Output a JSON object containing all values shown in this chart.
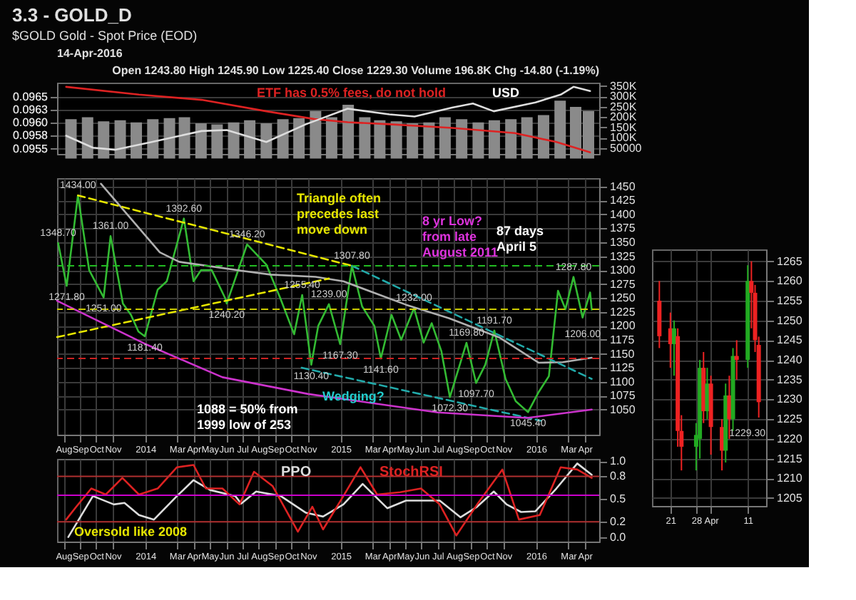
{
  "chart_data": [
    {
      "type": "line",
      "title": "3.3 - GOLD_D",
      "subtitle": "$GOLD Gold - Spot Price (EOD)",
      "annotations": [
        "14-Apr-2016",
        "Open 1243.80  High 1245.90  Low 1225.40  Close 1229.30  Volume 196.8K  Chg -14.80 (-1.19%)",
        "ETF has 0.5% fees, do not hold",
        "USD"
      ],
      "xlim": [
        "2013-07-20",
        "2016-04-28"
      ],
      "ylim": [
        0.0954,
        0.09677
      ],
      "yticks": [
        0.0955,
        {
          "value": 0.09575,
          "label": "0.0958"
        },
        {
          "value": 0.096,
          "label": "0.0960"
        },
        {
          "value": 0.09625,
          "label": "0.0963"
        },
        0.0965
      ],
      "y2lim": [
        22000,
        367000
      ],
      "y2ticks": [
        50000,
        {
          "value": 100000,
          "label": "100K"
        },
        {
          "value": 150000,
          "label": "150K"
        },
        {
          "value": 200000,
          "label": "200K"
        },
        {
          "value": 250000,
          "label": "250K"
        },
        {
          "value": 300000,
          "label": "300K"
        },
        {
          "value": 350000,
          "label": "350K"
        }
      ],
      "tick_labels": "y",
      "grid": "y",
      "series": [
        {
          "type": "bar",
          "axis": "y2",
          "color": "#8a8a8a",
          "x": [
            "2013-08-15",
            "2013-09-15",
            "2013-10-15",
            "2013-11-15",
            "2013-12-15",
            "2014-01-15",
            "2014-02-15",
            "2014-03-15",
            "2014-04-15",
            "2014-05-15",
            "2014-06-15",
            "2014-07-15",
            "2014-08-15",
            "2014-09-15",
            "2014-10-15",
            "2014-11-15",
            "2014-12-15",
            "2015-01-15",
            "2015-02-15",
            "2015-03-15",
            "2015-04-15",
            "2015-05-15",
            "2015-06-15",
            "2015-07-15",
            "2015-08-15",
            "2015-09-15",
            "2015-10-15",
            "2015-11-15",
            "2015-12-15",
            "2016-01-15",
            "2016-02-15",
            "2016-03-15",
            "2016-04-08"
          ],
          "values": [
            190000,
            200000,
            180000,
            185000,
            175000,
            190000,
            195000,
            200000,
            170000,
            165000,
            175000,
            185000,
            170000,
            190000,
            195000,
            230000,
            200000,
            260000,
            200000,
            185000,
            180000,
            170000,
            175000,
            200000,
            190000,
            175000,
            185000,
            190000,
            200000,
            210000,
            280000,
            250000,
            230000
          ]
        },
        {
          "color": "#dd2222",
          "x": [
            "2013-08-06",
            "2013-12-20",
            "2014-04-16",
            "2014-08-15",
            "2014-11-13",
            "2015-01-14",
            "2015-04-02",
            "2015-07-28",
            "2015-11-22",
            "2016-02-08",
            "2016-04-11"
          ],
          "values": [
            0.09669,
            0.09654,
            0.09644,
            0.09622,
            0.09607,
            0.09601,
            0.09597,
            0.0959,
            0.0958,
            0.09563,
            0.09543
          ]
        },
        {
          "color": "#dddddd",
          "x": [
            "2013-08-06",
            "2013-09-25",
            "2013-11-05",
            "2014-01-13",
            "2014-04-16",
            "2014-06-02",
            "2014-08-15",
            "2014-10-28",
            "2015-01-14",
            "2015-04-02",
            "2015-05-19",
            "2015-07-28",
            "2015-09-05",
            "2015-10-14",
            "2015-12-31",
            "2016-02-16",
            "2016-03-11",
            "2016-04-11"
          ],
          "values": [
            0.09575,
            0.09552,
            0.09548,
            0.09563,
            0.09584,
            0.09586,
            0.09563,
            0.09597,
            0.09627,
            0.09616,
            0.09612,
            0.09629,
            0.09637,
            0.09622,
            0.09639,
            0.09654,
            0.09669,
            0.09661
          ]
        }
      ]
    },
    {
      "type": "line",
      "xlim": [
        "2013-07-20",
        "2016-04-28"
      ],
      "ylim": [
        1005,
        1465
      ],
      "yticks": [
        1050,
        1075,
        1100,
        1125,
        1150,
        1175,
        1200,
        1225,
        1250,
        1275,
        1300,
        1325,
        1350,
        1375,
        1400,
        1425,
        1450
      ],
      "xticks": [
        {
          "value": "2013-08-01",
          "label": "Aug"
        },
        {
          "value": "2013-09-01",
          "label": "Sep"
        },
        {
          "value": "2013-10-01",
          "label": "Oct"
        },
        {
          "value": "2013-11-01",
          "label": "Nov"
        },
        {
          "value": "2014-01-01",
          "label": "2014"
        },
        {
          "value": "2014-03-01",
          "label": "Mar"
        },
        {
          "value": "2014-04-01",
          "label": "Apr"
        },
        {
          "value": "2014-05-01",
          "label": "May"
        },
        {
          "value": "2014-06-01",
          "label": "Jun"
        },
        {
          "value": "2014-07-01",
          "label": "Jul"
        },
        {
          "value": "2014-08-01",
          "label": "Aug"
        },
        {
          "value": "2014-09-01",
          "label": "Sep"
        },
        {
          "value": "2014-10-01",
          "label": "Oct"
        },
        {
          "value": "2014-11-01",
          "label": "Nov"
        },
        {
          "value": "2015-01-01",
          "label": "2015"
        },
        {
          "value": "2015-03-01",
          "label": "Mar"
        },
        {
          "value": "2015-04-01",
          "label": "Apr"
        },
        {
          "value": "2015-05-01",
          "label": "May"
        },
        {
          "value": "2015-06-01",
          "label": "Jun"
        },
        {
          "value": "2015-07-01",
          "label": "Jul"
        },
        {
          "value": "2015-08-01",
          "label": "Aug"
        },
        {
          "value": "2015-09-01",
          "label": "Sep"
        },
        {
          "value": "2015-10-01",
          "label": "Oct"
        },
        {
          "value": "2015-11-01",
          "label": "Nov"
        },
        {
          "value": "2016-01-01",
          "label": "2016"
        },
        {
          "value": "2016-03-01",
          "label": "Mar"
        },
        {
          "value": "2016-04-01",
          "label": "Apr"
        }
      ],
      "grid": true,
      "ref_lines": [
        {
          "axis": "y",
          "value": 1307.8,
          "color": "#22bb22",
          "line_style": "dashed"
        },
        {
          "axis": "y",
          "value": 1230,
          "color": "#cccc00",
          "line_style": "dashed"
        },
        {
          "axis": "y",
          "value": 1141.6,
          "color": "#cc2222",
          "line_style": "dashed"
        }
      ],
      "series": [
        {
          "color": "#33bb33",
          "x": [
            "2013-07-22",
            "2013-08-07",
            "2013-08-28",
            "2013-09-18",
            "2013-10-15",
            "2013-10-28",
            "2013-11-20",
            "2013-12-05",
            "2013-12-19",
            "2013-12-31",
            "2014-01-24",
            "2014-02-10",
            "2014-03-14",
            "2014-04-01",
            "2014-04-15",
            "2014-05-05",
            "2014-05-30",
            "2014-06-02",
            "2014-07-10",
            "2014-08-15",
            "2014-09-10",
            "2014-10-06",
            "2014-10-21",
            "2014-11-07",
            "2014-11-20",
            "2014-12-10",
            "2014-12-31",
            "2015-01-22",
            "2015-02-10",
            "2015-03-05",
            "2015-03-17",
            "2015-04-06",
            "2015-04-24",
            "2015-05-18",
            "2015-06-05",
            "2015-06-20",
            "2015-07-08",
            "2015-07-24",
            "2015-08-24",
            "2015-09-11",
            "2015-09-28",
            "2015-10-15",
            "2015-11-05",
            "2015-11-24",
            "2015-12-17",
            "2016-01-05",
            "2016-01-25",
            "2016-02-11",
            "2016-02-25",
            "2016-03-11",
            "2016-03-28",
            "2016-04-11",
            "2016-04-14"
          ],
          "values": [
            1348.7,
            1271.8,
            1434.0,
            1300,
            1251.0,
            1361.0,
            1240,
            1220,
            1190,
            1181.4,
            1265,
            1280,
            1392.6,
            1280,
            1300,
            1300,
            1250,
            1240.2,
            1346.2,
            1310,
            1250,
            1185,
            1255.4,
            1130.4,
            1200,
            1239.0,
            1167.3,
            1307.8,
            1235,
            1200,
            1141.6,
            1220,
            1175,
            1232.0,
            1170,
            1205,
            1155,
            1072.3,
            1169.8,
            1097.7,
            1130,
            1191.7,
            1105,
            1065,
            1045.4,
            1080,
            1110,
            1263,
            1230,
            1287.8,
            1215,
            1260,
            1229.3
          ]
        },
        {
          "color": "#b0b0b0",
          "x": [
            "2013-10-10",
            "2014-01-28",
            "2014-03-05",
            "2014-04-25",
            "2014-06-30",
            "2014-08-23",
            "2014-11-15",
            "2015-01-06",
            "2015-05-03",
            "2015-07-22",
            "2015-10-25",
            "2016-01-06",
            "2016-02-20",
            "2016-04-14"
          ],
          "values": [
            1455,
            1332,
            1315,
            1308,
            1299,
            1292,
            1288,
            1280,
            1238,
            1214,
            1179,
            1134,
            1135,
            1143
          ]
        },
        {
          "color": "#e6e600",
          "line_style": "dashed",
          "x": [
            "2013-08-28",
            "2015-01-22"
          ],
          "values": [
            1434,
            1307.8
          ]
        },
        {
          "color": "#e6e600",
          "line_style": "dashed",
          "x": [
            "2013-07-20",
            "2014-12-10"
          ],
          "values": [
            1180,
            1285
          ]
        },
        {
          "color": "#22aaaa",
          "line_style": "dashed",
          "x": [
            "2015-01-22",
            "2016-04-14"
          ],
          "values": [
            1307.8,
            1105
          ]
        },
        {
          "color": "#22aaaa",
          "line_style": "dashed",
          "x": [
            "2014-10-20",
            "2016-01-10"
          ],
          "values": [
            1125,
            1030
          ]
        },
        {
          "color": "#cc33cc",
          "x": [
            "2013-07-20",
            "2013-12-31",
            "2014-05-25",
            "2014-11-01",
            "2015-07-01",
            "2015-12-15",
            "2016-04-14"
          ],
          "values": [
            1245,
            1168,
            1108,
            1078,
            1045,
            1035,
            1050
          ]
        }
      ],
      "annotations": [
        {
          "text": "1348.70",
          "x": "2013-07-22",
          "y": 1348.7
        },
        {
          "text": "1271.80",
          "x": "2013-08-07",
          "y": 1271.8
        },
        {
          "text": "1434.00",
          "x": "2013-08-28",
          "y": 1434.0
        },
        {
          "text": "1251.00",
          "x": "2013-10-15",
          "y": 1251.0
        },
        {
          "text": "1361.00",
          "x": "2013-10-28",
          "y": 1361.0
        },
        {
          "text": "1181.40",
          "x": "2013-12-31",
          "y": 1181.4
        },
        {
          "text": "1392.60",
          "x": "2014-03-14",
          "y": 1392.6
        },
        {
          "text": "1240.20",
          "x": "2014-06-02",
          "y": 1240.2
        },
        {
          "text": "1346.20",
          "x": "2014-07-10",
          "y": 1346.2
        },
        {
          "text": "1255.40",
          "x": "2014-10-21",
          "y": 1255.4
        },
        {
          "text": "1130.40",
          "x": "2014-11-07",
          "y": 1130.4
        },
        {
          "text": "1239.00",
          "x": "2014-12-10",
          "y": 1239.0
        },
        {
          "text": "1167.30",
          "x": "2014-12-31",
          "y": 1167.3
        },
        {
          "text": "1307.80",
          "x": "2015-01-22",
          "y": 1307.8
        },
        {
          "text": "1141.60",
          "x": "2015-03-17",
          "y": 1141.6
        },
        {
          "text": "1232.00",
          "x": "2015-05-18",
          "y": 1232.0
        },
        {
          "text": "1072.30",
          "x": "2015-07-24",
          "y": 1072.3
        },
        {
          "text": "1169.80",
          "x": "2015-08-24",
          "y": 1169.8
        },
        {
          "text": "1097.70",
          "x": "2015-09-11",
          "y": 1097.7
        },
        {
          "text": "1191.70",
          "x": "2015-10-15",
          "y": 1191.7
        },
        {
          "text": "1045.40",
          "x": "2015-12-17",
          "y": 1045.4
        },
        {
          "text": "1287.80",
          "x": "2016-03-11",
          "y": 1287.8
        },
        {
          "text": "1206.00",
          "x": "2016-03-28",
          "y": 1206
        },
        "Triangle often\nprecedes last\nmove down",
        "8 yr Low?\nfrom late\nAugust 2011",
        "87 days\nApril 5",
        "1088 = 50% from\n1999  low of 253",
        "Wedging?"
      ]
    },
    {
      "type": "line",
      "xlim": [
        "2013-07-20",
        "2016-04-28"
      ],
      "ylim": [
        -0.06,
        1.03
      ],
      "yticks": [
        {
          "value": 0,
          "label": "0.0"
        },
        0.2,
        0.5,
        0.8,
        {
          "value": 1,
          "label": "1.0"
        }
      ],
      "xticks": [
        {
          "value": "2013-08-01",
          "label": "Aug"
        },
        {
          "value": "2013-09-01",
          "label": "Sep"
        },
        {
          "value": "2013-10-01",
          "label": "Oct"
        },
        {
          "value": "2013-11-01",
          "label": "Nov"
        },
        {
          "value": "2014-01-01",
          "label": "2014"
        },
        {
          "value": "2014-03-01",
          "label": "Mar"
        },
        {
          "value": "2014-04-01",
          "label": "Apr"
        },
        {
          "value": "2014-05-01",
          "label": "May"
        },
        {
          "value": "2014-06-01",
          "label": "Jun"
        },
        {
          "value": "2014-07-01",
          "label": "Jul"
        },
        {
          "value": "2014-08-01",
          "label": "Aug"
        },
        {
          "value": "2014-09-01",
          "label": "Sep"
        },
        {
          "value": "2014-10-01",
          "label": "Oct"
        },
        {
          "value": "2014-11-01",
          "label": "Nov"
        },
        {
          "value": "2015-01-01",
          "label": "2015"
        },
        {
          "value": "2015-03-01",
          "label": "Mar"
        },
        {
          "value": "2015-04-01",
          "label": "Apr"
        },
        {
          "value": "2015-05-01",
          "label": "May"
        },
        {
          "value": "2015-06-01",
          "label": "Jun"
        },
        {
          "value": "2015-07-01",
          "label": "Jul"
        },
        {
          "value": "2015-08-01",
          "label": "Aug"
        },
        {
          "value": "2015-09-01",
          "label": "Sep"
        },
        {
          "value": "2015-10-01",
          "label": "Oct"
        },
        {
          "value": "2015-11-01",
          "label": "Nov"
        },
        {
          "value": "2016-01-01",
          "label": "2016"
        },
        {
          "value": "2016-03-01",
          "label": "Mar"
        },
        {
          "value": "2016-04-01",
          "label": "Apr"
        }
      ],
      "grid": "x",
      "ref_lines": [
        {
          "axis": "y",
          "value": 0.55,
          "color": "#cc00cc"
        },
        {
          "axis": "y",
          "value": 0.8,
          "color": "#b03030"
        },
        {
          "axis": "y",
          "value": 0.2,
          "color": "#b03030"
        }
      ],
      "series": [
        {
          "name": "PPO",
          "color": "#dddddd",
          "x": [
            "2013-08-10",
            "2013-09-25",
            "2013-11-03",
            "2013-11-23",
            "2013-12-20",
            "2014-01-17",
            "2014-03-01",
            "2014-04-01",
            "2014-05-02",
            "2014-06-18",
            "2014-06-29",
            "2014-07-27",
            "2014-09-11",
            "2014-10-28",
            "2014-11-29",
            "2015-01-06",
            "2015-02-11",
            "2015-03-29",
            "2015-05-03",
            "2015-07-05",
            "2015-08-13",
            "2015-09-13",
            "2015-10-14",
            "2015-11-07",
            "2015-12-04",
            "2015-12-31",
            "2016-02-08",
            "2016-03-18",
            "2016-04-14"
          ],
          "values": [
            0,
            0.54,
            0.43,
            0.45,
            0.29,
            0.23,
            0.54,
            0.75,
            0.62,
            0.54,
            0.44,
            0.6,
            0.54,
            0.32,
            0.27,
            0.43,
            0.7,
            0.38,
            0.48,
            0.48,
            0.26,
            0.4,
            0.6,
            0.43,
            0.33,
            0.34,
            0.64,
            0.97,
            0.82
          ]
        },
        {
          "name": "StochRSI",
          "color": "#dd2222",
          "x": [
            "2013-08-06",
            "2013-08-25",
            "2013-09-22",
            "2013-10-19",
            "2013-11-19",
            "2013-12-20",
            "2014-01-24",
            "2014-03-01",
            "2014-04-01",
            "2014-04-24",
            "2014-05-25",
            "2014-06-26",
            "2014-07-23",
            "2014-08-27",
            "2014-10-13",
            "2014-11-09",
            "2014-11-29",
            "2015-01-06",
            "2015-02-07",
            "2015-03-10",
            "2015-04-22",
            "2015-05-31",
            "2015-07-05",
            "2015-08-05",
            "2015-09-13",
            "2015-10-30",
            "2015-11-30",
            "2016-01-08",
            "2016-02-16",
            "2016-03-18",
            "2016-04-14"
          ],
          "values": [
            0.23,
            0.4,
            0.64,
            0.56,
            0.78,
            0.56,
            0.64,
            0.92,
            0.95,
            0.64,
            0.64,
            0.43,
            0.86,
            0.67,
            0.07,
            0.4,
            0.1,
            0.54,
            0.92,
            0.56,
            0.59,
            0.64,
            0.43,
            0.02,
            0.43,
            0.89,
            0.23,
            0.29,
            0.92,
            0.89,
            0.78
          ]
        }
      ],
      "annotations": [
        "Oversold like 2008"
      ]
    },
    {
      "type": "candlestick",
      "xlim": [
        "2016-03-16",
        "2016-04-16"
      ],
      "ylim": [
        1203,
        1268
      ],
      "yticks": [
        1205,
        1210,
        1215,
        1220,
        1225,
        1230,
        1235,
        1240,
        1245,
        1250,
        1255,
        1260,
        1265
      ],
      "xticks": [
        {
          "value": "2016-03-21",
          "label": "21"
        },
        {
          "value": "2016-03-28",
          "label": "28"
        },
        {
          "value": "2016-04-01",
          "label": "Apr"
        },
        {
          "value": "2016-04-11",
          "label": "11"
        }
      ],
      "grid": true,
      "x": [
        "2016-03-18",
        "2016-03-21",
        "2016-03-22",
        "2016-03-23",
        "2016-03-24",
        "2016-03-28",
        "2016-03-29",
        "2016-03-30",
        "2016-03-31",
        "2016-04-01",
        "2016-04-04",
        "2016-04-05",
        "2016-04-06",
        "2016-04-07",
        "2016-04-08",
        "2016-04-11",
        "2016-04-12",
        "2016-04-13",
        "2016-04-14"
      ],
      "ohlc": [
        [
          1255,
          1260,
          1243,
          1246
        ],
        [
          1248,
          1252,
          1238,
          1244
        ],
        [
          1244,
          1250,
          1236,
          1248
        ],
        [
          1246,
          1248,
          1218,
          1222
        ],
        [
          1222,
          1226,
          1212,
          1218
        ],
        [
          1218,
          1224,
          1212,
          1221
        ],
        [
          1220,
          1240,
          1215,
          1238
        ],
        [
          1238,
          1242,
          1224,
          1227
        ],
        [
          1227,
          1238,
          1225,
          1234
        ],
        [
          1234,
          1236,
          1216,
          1223
        ],
        [
          1223,
          1225,
          1212,
          1217
        ],
        [
          1217,
          1234,
          1214,
          1231
        ],
        [
          1231,
          1236,
          1220,
          1225
        ],
        [
          1225,
          1243,
          1222,
          1241
        ],
        [
          1241,
          1245,
          1235,
          1240
        ],
        [
          1240,
          1264,
          1238,
          1260
        ],
        [
          1260,
          1265,
          1248,
          1257
        ],
        [
          1257,
          1259,
          1242,
          1245
        ],
        [
          1243.8,
          1245.9,
          1225.4,
          1229.3
        ]
      ],
      "colors": [
        "#ee2222",
        "#ee2222",
        "#22aa22",
        "#ee2222",
        "#ee2222",
        "#22aa22",
        "#22aa22",
        "#ee2222",
        "#22aa22",
        "#ee2222",
        "#ee2222",
        "#22aa22",
        "#ee2222",
        "#22aa22",
        "#ee2222",
        "#22aa22",
        "#ee2222",
        "#ee2222",
        "#ee2222"
      ],
      "annotations": [
        {
          "text": "1229.30",
          "x": "2016-04-14",
          "y": 1229.3
        }
      ]
    }
  ]
}
